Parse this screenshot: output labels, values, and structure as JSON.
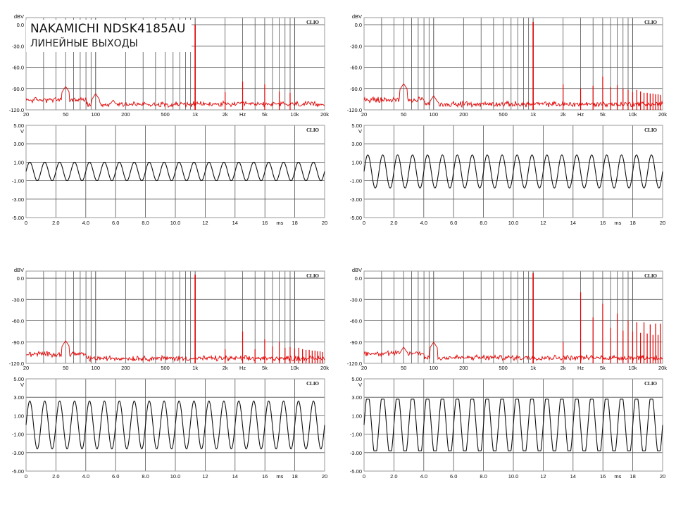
{
  "title": "NAKAMICHI NDSK4185AU",
  "subtitle": "ЛИНЕЙНЫЕ ВЫХОДЫ",
  "brand": "CLIO",
  "colors": {
    "spectrum": "#e00000",
    "waveform": "#111111",
    "grid": "#555555",
    "frame": "#9a9a9a"
  },
  "spectrum_axes": {
    "ylabel": "dBV",
    "xlabel": "Hz",
    "y_ticks": [
      "0.0",
      "-30.0",
      "-60.0",
      "-90.0",
      "-120.0"
    ],
    "x_ticks": [
      "20",
      "50",
      "100",
      "200",
      "500",
      "1k",
      "2k",
      "5k",
      "10k",
      "20k"
    ],
    "x_ticks_values": [
      20,
      50,
      100,
      200,
      500,
      1000,
      2000,
      5000,
      10000,
      20000
    ]
  },
  "wave_axes": {
    "ylabel": "V",
    "xlabel": "ms",
    "y_ticks": [
      "5.00",
      "3.00",
      "1.00",
      "-1.00",
      "-3.00",
      "-5.00"
    ],
    "x_ticks": [
      "0",
      "2.0",
      "4.0",
      "6.0",
      "8.0",
      "10.0",
      "12",
      "14",
      "16",
      "18",
      "20"
    ]
  },
  "chart_data": [
    {
      "type": "line",
      "panel": "spectrum",
      "ylabel": "dBV",
      "xlabel": "Hz",
      "xscale": "log",
      "xlim": [
        20,
        20000
      ],
      "ylim": [
        -120,
        10
      ],
      "series": [
        {
          "fundamental_hz": 1000,
          "fundamental_dbv": 0,
          "noise_floor_dbv": -112,
          "harmonics": [
            [
              2000,
              -95
            ],
            [
              3000,
              -80
            ],
            [
              5000,
              -84
            ],
            [
              7000,
              -94
            ],
            [
              9000,
              -96
            ]
          ],
          "hum": [
            [
              50,
              -87
            ],
            [
              100,
              -97
            ],
            [
              150,
              -106
            ]
          ]
        }
      ]
    },
    {
      "type": "line",
      "panel": "spectrum",
      "ylabel": "dBV",
      "xlabel": "Hz",
      "xscale": "log",
      "xlim": [
        20,
        20000
      ],
      "ylim": [
        -120,
        10
      ],
      "series": [
        {
          "fundamental_hz": 1000,
          "fundamental_dbv": 4,
          "noise_floor_dbv": -112,
          "harmonics": [
            [
              2000,
              -84
            ],
            [
              3000,
              -90
            ],
            [
              4000,
              -86
            ],
            [
              5000,
              -73
            ],
            [
              6000,
              -88
            ],
            [
              7000,
              -85
            ],
            [
              8000,
              -90
            ],
            [
              9000,
              -92
            ],
            [
              10000,
              -95
            ],
            [
              11000,
              -92
            ],
            [
              12000,
              -94
            ],
            [
              13000,
              -96
            ],
            [
              14000,
              -96
            ],
            [
              15000,
              -97
            ],
            [
              16000,
              -97
            ],
            [
              17000,
              -98
            ],
            [
              18000,
              -98
            ],
            [
              19000,
              -99
            ]
          ],
          "hum": [
            [
              50,
              -83
            ],
            [
              100,
              -100
            ]
          ]
        }
      ]
    },
    {
      "type": "line",
      "panel": "spectrum",
      "ylabel": "dBV",
      "xlabel": "Hz",
      "xscale": "log",
      "xlim": [
        20,
        20000
      ],
      "ylim": [
        -120,
        10
      ],
      "series": [
        {
          "fundamental_hz": 1000,
          "fundamental_dbv": 5,
          "noise_floor_dbv": -113,
          "harmonics": [
            [
              2000,
              -100
            ],
            [
              3000,
              -75
            ],
            [
              4000,
              -100
            ],
            [
              5000,
              -86
            ],
            [
              6000,
              -96
            ],
            [
              7000,
              -90
            ],
            [
              8000,
              -98
            ],
            [
              9000,
              -97
            ],
            [
              10000,
              -99
            ],
            [
              11000,
              -98
            ],
            [
              12000,
              -100
            ],
            [
              13000,
              -101
            ],
            [
              14000,
              -101
            ],
            [
              15000,
              -102
            ],
            [
              16000,
              -102
            ],
            [
              17000,
              -103
            ],
            [
              18000,
              -103
            ],
            [
              19000,
              -104
            ]
          ],
          "hum": [
            [
              50,
              -88
            ]
          ]
        }
      ]
    },
    {
      "type": "line",
      "panel": "spectrum",
      "ylabel": "dBV",
      "xlabel": "Hz",
      "xscale": "log",
      "xlim": [
        20,
        20000
      ],
      "ylim": [
        -120,
        10
      ],
      "series": [
        {
          "fundamental_hz": 1000,
          "fundamental_dbv": 7,
          "noise_floor_dbv": -112,
          "harmonics": [
            [
              2000,
              -90
            ],
            [
              3000,
              -20
            ],
            [
              4000,
              -55
            ],
            [
              5000,
              -36
            ],
            [
              6000,
              -70
            ],
            [
              7000,
              -50
            ],
            [
              8000,
              -74
            ],
            [
              9000,
              -60
            ],
            [
              10000,
              -75
            ],
            [
              11000,
              -62
            ],
            [
              12000,
              -77
            ],
            [
              13000,
              -62
            ],
            [
              14000,
              -78
            ],
            [
              15000,
              -65
            ],
            [
              16000,
              -80
            ],
            [
              17000,
              -64
            ],
            [
              18000,
              -80
            ],
            [
              19000,
              -64
            ]
          ],
          "hum": [
            [
              50,
              -97
            ],
            [
              100,
              -90
            ]
          ]
        }
      ]
    },
    {
      "type": "line",
      "panel": "waveform",
      "ylabel": "V",
      "xlabel": "ms",
      "xlim": [
        0,
        20
      ],
      "ylim": [
        -5,
        5
      ],
      "series": [
        {
          "frequency_hz": 1000,
          "amplitude_v": 1.0,
          "clipping": false
        }
      ]
    },
    {
      "type": "line",
      "panel": "waveform",
      "ylabel": "V",
      "xlabel": "ms",
      "xlim": [
        0,
        20
      ],
      "ylim": [
        -5,
        5
      ],
      "series": [
        {
          "frequency_hz": 1000,
          "amplitude_v": 1.8,
          "clipping": false
        }
      ]
    },
    {
      "type": "line",
      "panel": "waveform",
      "ylabel": "V",
      "xlabel": "ms",
      "xlim": [
        0,
        20
      ],
      "ylim": [
        -5,
        5
      ],
      "series": [
        {
          "frequency_hz": 1000,
          "amplitude_v": 2.6,
          "clipping": false
        }
      ]
    },
    {
      "type": "line",
      "panel": "waveform",
      "ylabel": "V",
      "xlabel": "ms",
      "xlim": [
        0,
        20
      ],
      "ylim": [
        -5,
        5
      ],
      "series": [
        {
          "frequency_hz": 1000,
          "amplitude_v": 2.8,
          "clipping": true,
          "clip_level_v": 2.8
        }
      ]
    }
  ]
}
